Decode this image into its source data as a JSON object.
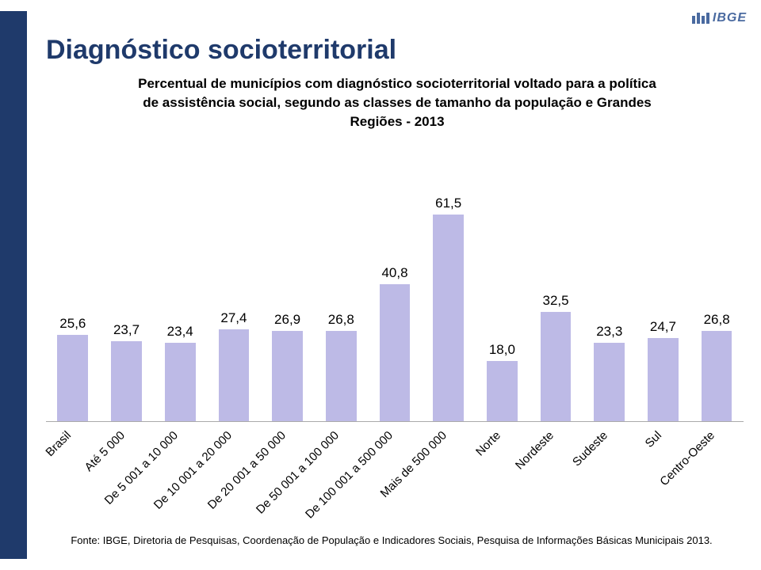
{
  "logo": {
    "text": "IBGE",
    "color": "#4a6aa0"
  },
  "slide_title": "Diagnóstico socioterritorial",
  "chart": {
    "type": "bar",
    "title_lines": [
      "Percentual de municípios com diagnóstico socioterritorial voltado para a política",
      "de assistência social, segundo as classes de tamanho da população e Grandes",
      "Regiões - 2013"
    ],
    "title_fontsize": 17,
    "title_color": "#000000",
    "label_fontsize": 15,
    "label_rotation_deg": -45,
    "value_fontsize": 17,
    "ylim": [
      0,
      80
    ],
    "bar_color": "#bdbae6",
    "baseline_color": "#aaaaaa",
    "background_color": "#ffffff",
    "categories": [
      "Brasil",
      "Até 5 000",
      "De 5 001 a 10 000",
      "De 10 001 a 20 000",
      "De 20 001 a 50 000",
      "De 50 001 a 100 000",
      "De 100 001 a 500 000",
      "Mais de 500 000",
      "Norte",
      "Nordeste",
      "Sudeste",
      "Sul",
      "Centro-Oeste"
    ],
    "values": [
      25.6,
      23.7,
      23.4,
      27.4,
      26.9,
      26.8,
      40.8,
      61.5,
      18.0,
      32.5,
      23.3,
      24.7,
      26.8
    ]
  },
  "footnote": "Fonte: IBGE, Diretoria de Pesquisas, Coordenação de População e Indicadores Sociais, Pesquisa de Informações Básicas Municipais 2013."
}
